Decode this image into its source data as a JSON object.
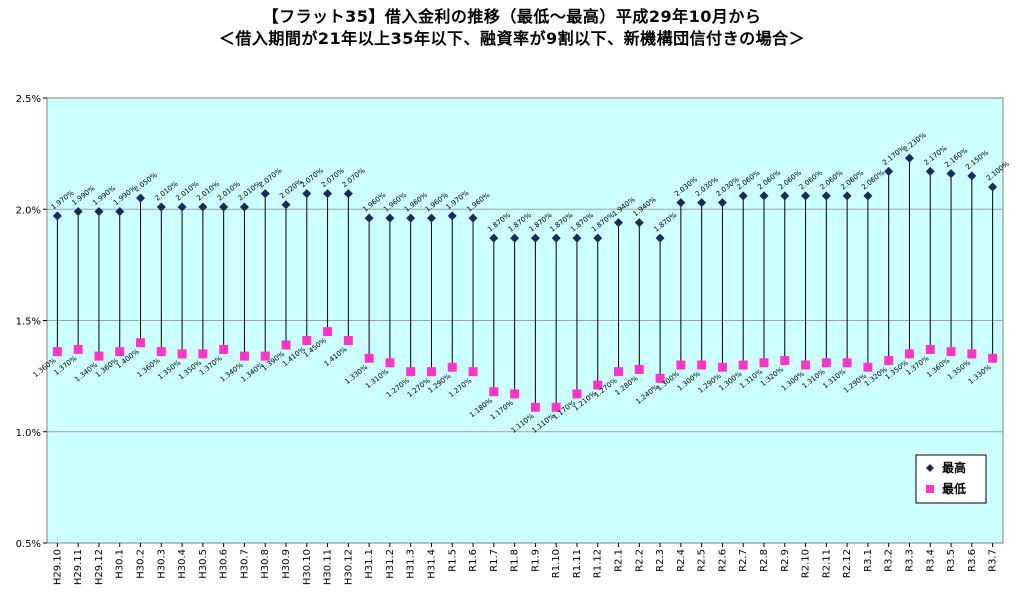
{
  "chart_data": {
    "type": "line",
    "title": "【フラット35】借入金利の推移（最低～最高）平成29年10月から",
    "subtitle": "＜借入期間が21年以上35年以下、融資率が9割以下、新機構団信付きの場合＞",
    "categories": [
      "H29.10",
      "H29.11",
      "H29.12",
      "H30.1",
      "H30.2",
      "H30.3",
      "H30.4",
      "H30.5",
      "H30.6",
      "H30.7",
      "H30.8",
      "H30.9",
      "H30.10",
      "H30.11",
      "H30.12",
      "H31.1",
      "H31.2",
      "H31.3",
      "H31.4",
      "R1.5",
      "R1.6",
      "R1.7",
      "R1.8",
      "R1.9",
      "R1.10",
      "R1.11",
      "R1.12",
      "R2.1",
      "R2.2",
      "R2.3",
      "R2.4",
      "R2.5",
      "R2.6",
      "R2.7",
      "R2.8",
      "R2.9",
      "R2.10",
      "R2.11",
      "R2.12",
      "R3.1",
      "R3.2",
      "R3.3",
      "R3.4",
      "R3.5",
      "R3.6",
      "R3.7"
    ],
    "series": [
      {
        "name": "最高",
        "color": "#1a2a5e",
        "marker": "diamond",
        "values": [
          1.97,
          1.99,
          1.99,
          1.99,
          2.05,
          2.01,
          2.01,
          2.01,
          2.01,
          2.01,
          2.07,
          2.02,
          2.07,
          2.07,
          2.07,
          1.96,
          1.96,
          1.96,
          1.96,
          1.97,
          1.96,
          1.87,
          1.87,
          1.87,
          1.87,
          1.87,
          1.87,
          1.94,
          1.94,
          1.87,
          2.03,
          2.03,
          2.03,
          2.06,
          2.06,
          2.06,
          2.06,
          2.06,
          2.06,
          2.06,
          2.17,
          2.23,
          2.17,
          2.16,
          2.15,
          2.1
        ],
        "labels": [
          "1.970%",
          "1.990%",
          "1.990%",
          "1.990%",
          "2.050%",
          "2.010%",
          "2.010%",
          "2.010%",
          "2.010%",
          "2.010%",
          "2.070%",
          "2.020%",
          "2.070%",
          "2.070%",
          "2.070%",
          "1.960%",
          "1.960%",
          "1.960%",
          "1.960%",
          "1.970%",
          "1.960%",
          "1.870%",
          "1.870%",
          "1.870%",
          "1.870%",
          "1.870%",
          "1.870%",
          "1.940%",
          "1.940%",
          "1.870%",
          "2.030%",
          "2.030%",
          "2.030%",
          "2.060%",
          "2.060%",
          "2.060%",
          "2.060%",
          "2.060%",
          "2.060%",
          "2.060%",
          "2.170%",
          "2.230%",
          "2.170%",
          "2.160%",
          "2.150%",
          "2.100%"
        ]
      },
      {
        "name": "最低",
        "color": "#ff33cc",
        "marker": "square",
        "values": [
          1.36,
          1.37,
          1.34,
          1.36,
          1.4,
          1.36,
          1.35,
          1.35,
          1.37,
          1.34,
          1.34,
          1.39,
          1.41,
          1.45,
          1.41,
          1.33,
          1.31,
          1.27,
          1.27,
          1.29,
          1.27,
          1.18,
          1.17,
          1.11,
          1.11,
          1.17,
          1.21,
          1.27,
          1.28,
          1.24,
          1.3,
          1.3,
          1.29,
          1.3,
          1.31,
          1.32,
          1.3,
          1.31,
          1.31,
          1.29,
          1.32,
          1.35,
          1.37,
          1.36,
          1.35,
          1.33
        ],
        "labels": [
          "1.360%",
          "1.370%",
          "1.340%",
          "1.360%",
          "1.400%",
          "1.360%",
          "1.350%",
          "1.350%",
          "1.370%",
          "1.340%",
          "1.340%",
          "1.390%",
          "1.410%",
          "1.450%",
          "1.410%",
          "1.330%",
          "1.310%",
          "1.270%",
          "1.270%",
          "1.290%",
          "1.270%",
          "1.180%",
          "1.170%",
          "1.110%",
          "1.110%",
          "1.170%",
          "1.210%",
          "1.270%",
          "1.280%",
          "1.240%",
          "1.300%",
          "1.300%",
          "1.290%",
          "1.300%",
          "1.310%",
          "1.320%",
          "1.300%",
          "1.310%",
          "1.310%",
          "1.290%",
          "1.320%",
          "1.350%",
          "1.370%",
          "1.360%",
          "1.350%",
          "1.330%"
        ]
      }
    ],
    "ylim": [
      0.5,
      2.5
    ],
    "yticks": [
      "0.5%",
      "1.0%",
      "1.5%",
      "2.0%",
      "2.5%"
    ],
    "ytick_values": [
      0.5,
      1.0,
      1.5,
      2.0,
      2.5
    ],
    "grid": true,
    "legend_position": "bottom-right",
    "plot_background": "#ccffff",
    "range_line_color": "#000000"
  }
}
